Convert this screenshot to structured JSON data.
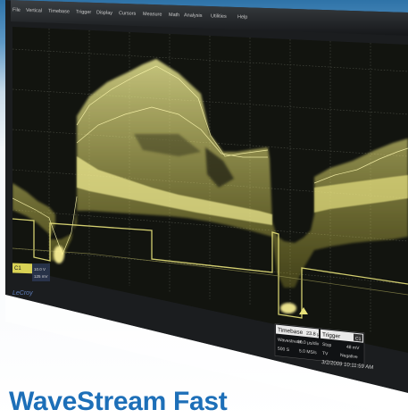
{
  "menu": {
    "items": [
      "File",
      "Vertical",
      "Timebase",
      "Trigger",
      "Display",
      "Cursors",
      "Measure",
      "Math",
      "Analysis",
      "Utilities",
      "Help"
    ]
  },
  "channel": {
    "badge": "C1",
    "value": "10.0 V",
    "offset": "125 mV"
  },
  "brand": "LeCroy",
  "timebase": {
    "label": "Timebase",
    "value": "23.8 μs",
    "row2_left": "Wavestream",
    "row2_right": "10.0 μs/div",
    "row3_left": "500 S",
    "row3_right": "5.0 MS/s"
  },
  "trigger": {
    "label": "Trigger",
    "badge": "C1",
    "row2_left": "Stop",
    "row2_right": "48 mV",
    "row3_left": "TV",
    "row3_right": "Negative"
  },
  "timestamp": "3/2/2009 10:11:59 AM",
  "headline": "WaveStream Fast",
  "colors": {
    "trace": "#e6e05a",
    "screen": "#141611",
    "menu_bar": "#2a2d30",
    "headline": "#1d6fb8"
  }
}
